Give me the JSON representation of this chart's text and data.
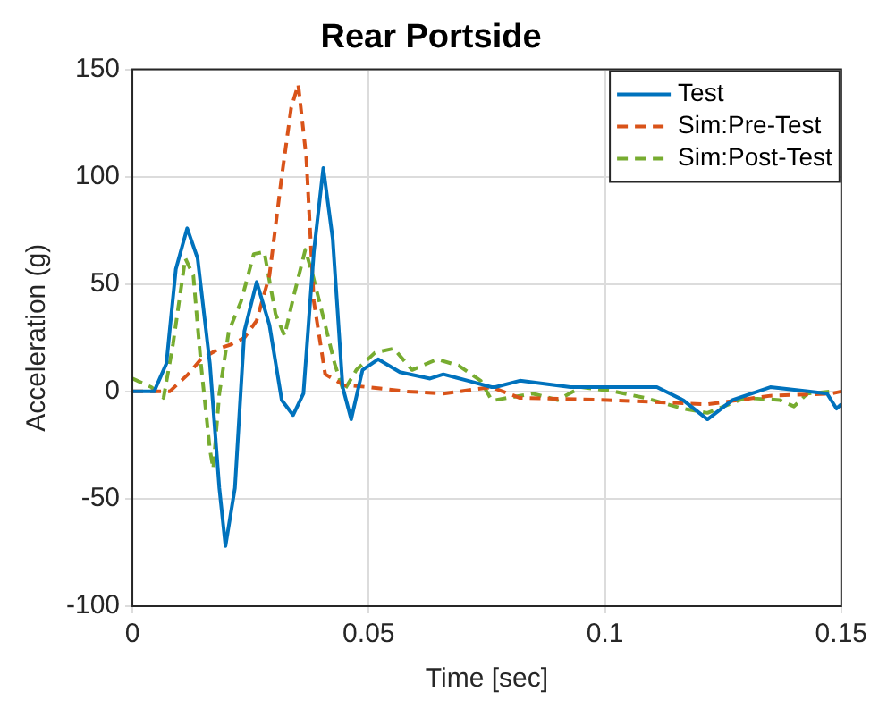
{
  "chart_data": {
    "type": "line",
    "title": "Rear Portside",
    "xlabel": "Time [sec]",
    "ylabel": "Acceleration (g)",
    "xlim": [
      0,
      0.15
    ],
    "xticks": [
      0,
      0.05,
      0.1,
      0.15
    ],
    "ylim": [
      -100,
      150
    ],
    "yticks": [
      -100,
      -50,
      0,
      50,
      100,
      150
    ],
    "grid": true,
    "legend": "top right",
    "marker": "none",
    "series": [
      {
        "name": "Test",
        "color": "#0072bd",
        "line_style": "solid",
        "x": [
          0,
          0.0046,
          0.0072,
          0.0092,
          0.0116,
          0.0138,
          0.0164,
          0.0184,
          0.0197,
          0.0217,
          0.0237,
          0.0263,
          0.029,
          0.0316,
          0.034,
          0.0362,
          0.0384,
          0.0404,
          0.0424,
          0.0445,
          0.0463,
          0.0487,
          0.052,
          0.0566,
          0.063,
          0.0658,
          0.071,
          0.076,
          0.0768,
          0.082,
          0.0927,
          0.1006,
          0.111,
          0.1165,
          0.1217,
          0.127,
          0.135,
          0.143,
          0.147,
          0.149,
          0.15
        ],
        "values": [
          0,
          0,
          13,
          57,
          76,
          62,
          13,
          -45,
          -72,
          -45,
          28,
          51,
          31,
          -4,
          -11,
          -1,
          65,
          104,
          71,
          2,
          -13,
          10,
          15,
          9,
          6,
          8,
          5,
          2,
          2,
          5,
          2,
          2,
          2,
          -4,
          -13,
          -4,
          2,
          0,
          -1,
          -8,
          -6
        ]
      },
      {
        "name": "Sim:Pre-Test",
        "color": "#d95319",
        "line_style": "dashed",
        "x": [
          0,
          0.0079,
          0.0118,
          0.0145,
          0.0184,
          0.021,
          0.0237,
          0.0263,
          0.029,
          0.0316,
          0.0336,
          0.0351,
          0.0368,
          0.0384,
          0.0408,
          0.0447,
          0.05,
          0.058,
          0.0658,
          0.076,
          0.082,
          0.1006,
          0.1217,
          0.135,
          0.148,
          0.15
        ],
        "values": [
          0,
          0,
          8,
          15,
          20,
          22,
          25,
          33,
          54,
          100,
          132,
          143,
          109,
          42,
          8,
          3,
          2,
          0,
          -1,
          2,
          -3,
          -4,
          -6,
          -2,
          -1,
          0
        ]
      },
      {
        "name": "Sim:Post-Test",
        "color": "#77ac30",
        "line_style": "dashed",
        "x": [
          0,
          0.004,
          0.0066,
          0.0086,
          0.0112,
          0.0129,
          0.0145,
          0.0164,
          0.0171,
          0.0184,
          0.0204,
          0.023,
          0.0257,
          0.0279,
          0.0303,
          0.0322,
          0.0342,
          0.0366,
          0.0382,
          0.0408,
          0.0428,
          0.0447,
          0.0474,
          0.0513,
          0.0553,
          0.0592,
          0.0645,
          0.0691,
          0.0737,
          0.076,
          0.0768,
          0.0847,
          0.09,
          0.095,
          0.1019,
          0.1085,
          0.1165,
          0.1217,
          0.1297,
          0.137,
          0.14,
          0.1428,
          0.148
        ],
        "values": [
          6,
          2,
          -3,
          22,
          62,
          54,
          13,
          -27,
          -36,
          -1,
          28,
          42,
          64,
          65,
          36,
          26,
          45,
          66,
          54,
          31,
          13,
          0,
          10,
          18,
          20,
          10,
          15,
          12,
          5,
          -4,
          -4,
          -1,
          -4,
          2,
          0,
          -3,
          -8,
          -10,
          -3,
          -4,
          -7,
          -1,
          0
        ]
      }
    ]
  }
}
